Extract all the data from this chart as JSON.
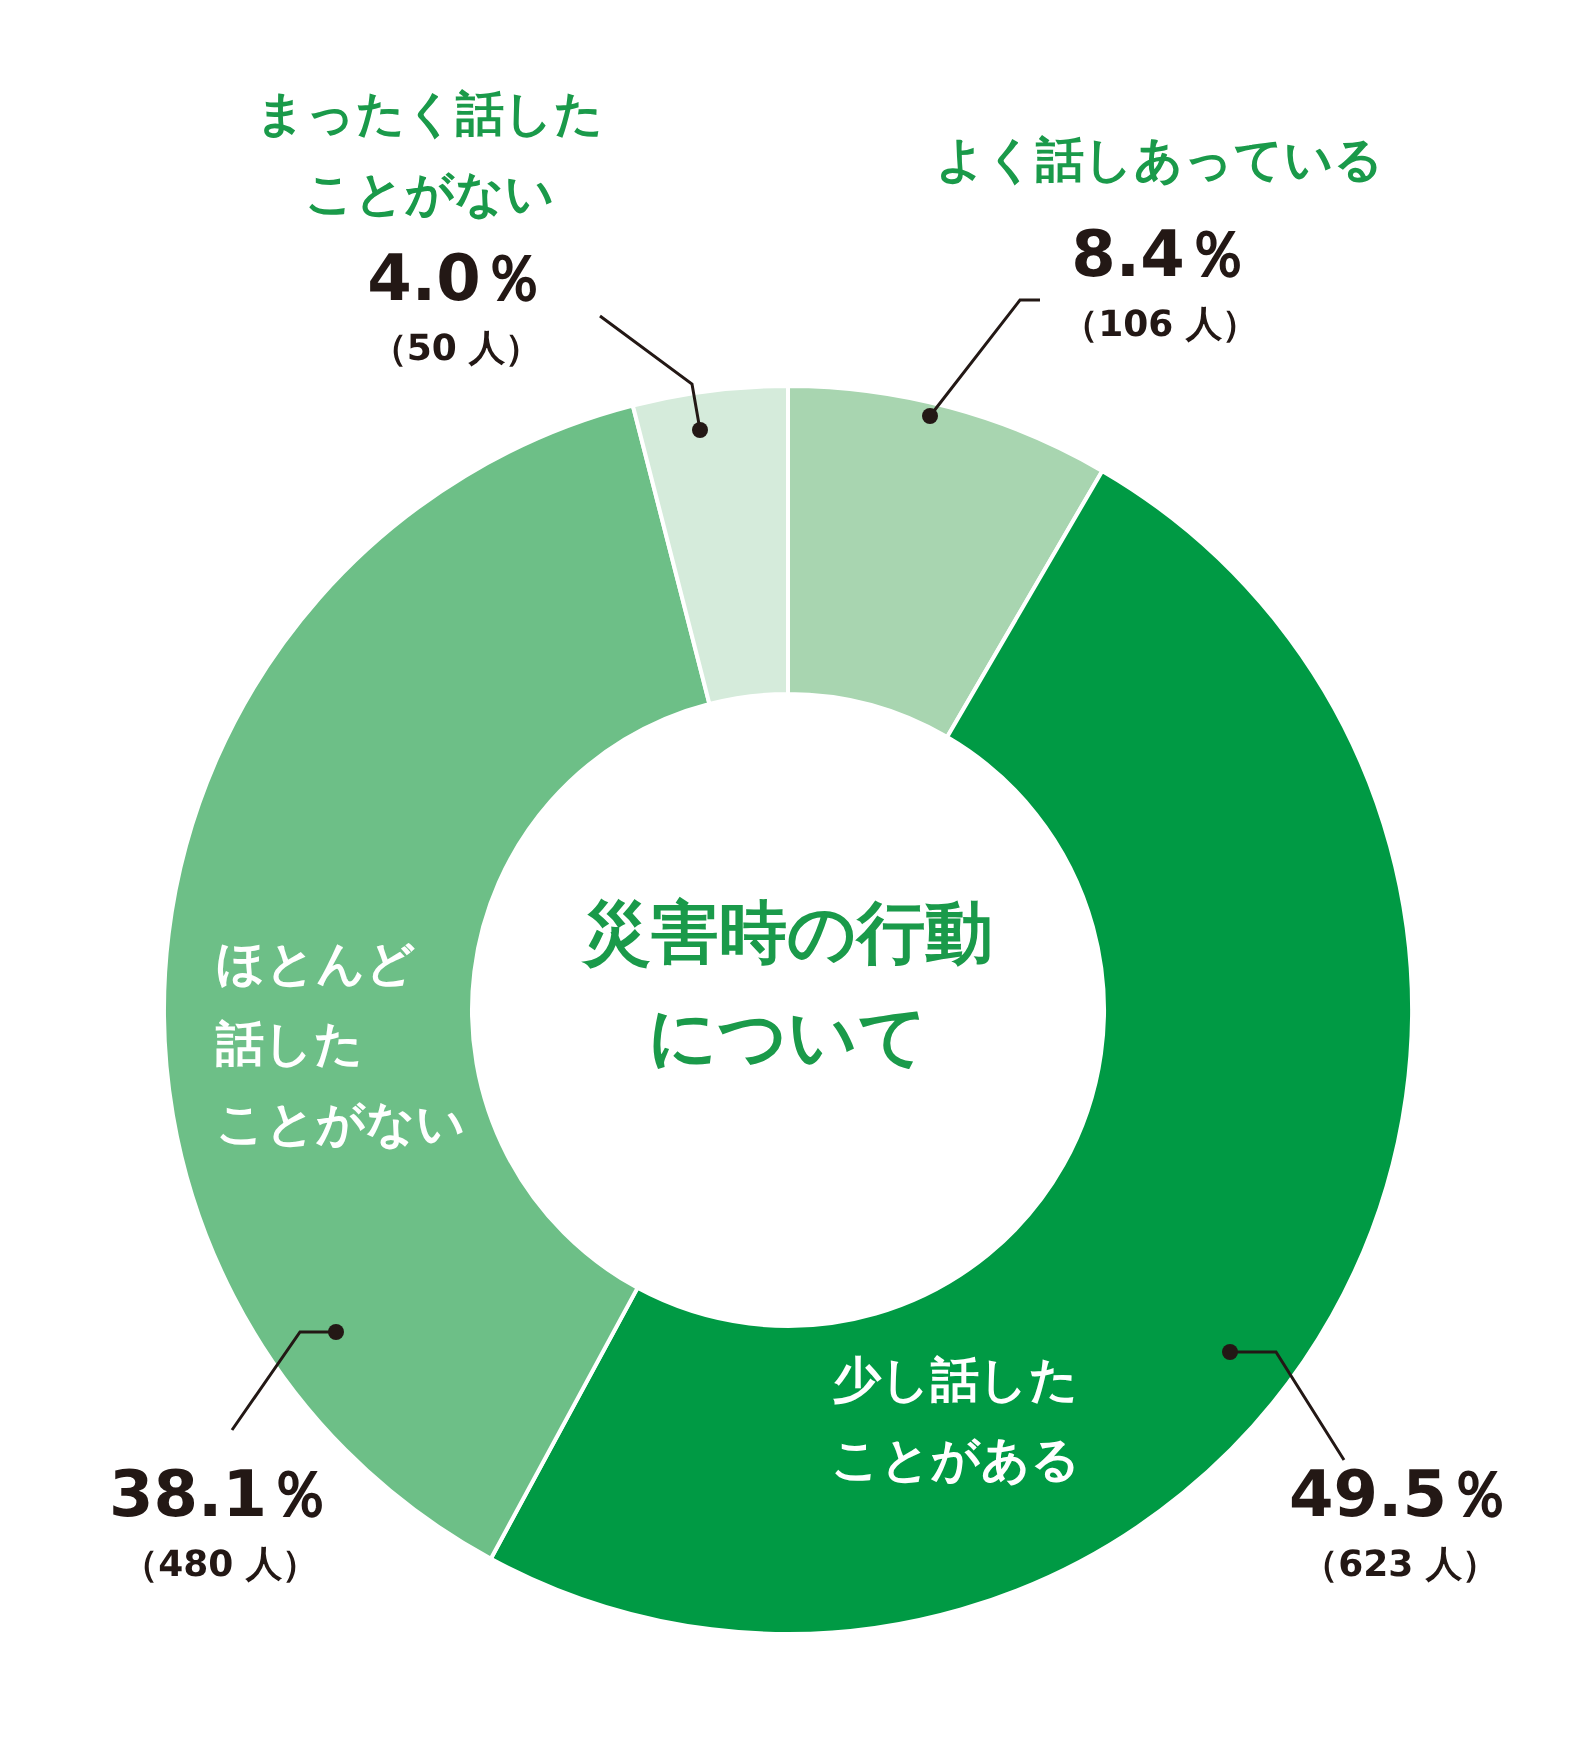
{
  "chart_data": {
    "type": "donut",
    "title": "災害時の行動について",
    "categories": [
      "よく話しあっている",
      "少し話したことがある",
      "ほとんど話したことがない",
      "まったく話したことがない"
    ],
    "values": [
      8.4,
      49.5,
      38.1,
      4.0
    ],
    "colors": [
      "#a8d5b0",
      "#009a44",
      "#6dbf87",
      "#d5ebdb"
    ],
    "value_labels": [
      "8.4％",
      "49.5％",
      "38.1％",
      "4.0％"
    ],
    "annotations": [
      "（106 人）",
      "（623 人）",
      "（480 人）",
      "（50 人）"
    ]
  }
}
